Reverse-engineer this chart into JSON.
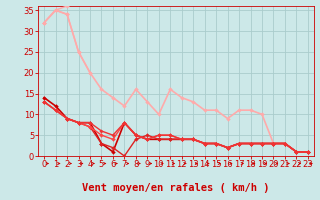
{
  "xlabel": "Vent moyen/en rafales ( km/h )",
  "xlim": [
    -0.5,
    23.5
  ],
  "ylim": [
    0,
    36
  ],
  "yticks": [
    0,
    5,
    10,
    15,
    20,
    25,
    30,
    35
  ],
  "xticks": [
    0,
    1,
    2,
    3,
    4,
    5,
    6,
    7,
    8,
    9,
    10,
    11,
    12,
    13,
    14,
    15,
    16,
    17,
    18,
    19,
    20,
    21,
    22,
    23
  ],
  "bg_color": "#cce8e8",
  "grid_color": "#aacccc",
  "lines": [
    {
      "x": [
        0,
        1,
        2,
        3,
        4,
        5,
        6,
        7,
        8,
        9,
        10,
        11,
        12,
        13,
        14,
        15,
        16,
        17,
        18,
        19,
        20,
        21,
        22,
        23
      ],
      "y": [
        32,
        35,
        36,
        null,
        null,
        null,
        null,
        null,
        null,
        null,
        null,
        null,
        null,
        null,
        null,
        null,
        null,
        null,
        null,
        null,
        null,
        null,
        null,
        null
      ],
      "color": "#ffaaaa",
      "lw": 1.0,
      "marker": "D",
      "ms": 2.0
    },
    {
      "x": [
        0,
        1,
        2,
        3,
        4,
        5,
        6,
        7,
        8,
        9,
        10,
        11,
        12,
        13,
        14,
        15,
        16,
        17,
        18,
        19,
        20,
        21,
        22,
        23
      ],
      "y": [
        32,
        35,
        34,
        25,
        20,
        null,
        null,
        null,
        null,
        null,
        null,
        null,
        null,
        null,
        null,
        null,
        null,
        null,
        null,
        null,
        null,
        null,
        null,
        null
      ],
      "color": "#ffaaaa",
      "lw": 1.0,
      "marker": "D",
      "ms": 2.0
    },
    {
      "x": [
        0,
        1,
        2,
        3,
        4,
        5,
        6,
        7,
        8,
        9,
        10,
        11,
        12,
        13,
        14,
        15,
        16,
        17,
        18,
        19,
        20,
        21,
        22,
        23
      ],
      "y": [
        32,
        35,
        34,
        25,
        20,
        16,
        14,
        12,
        16,
        13,
        10,
        16,
        14,
        13,
        11,
        11,
        9,
        11,
        11,
        10,
        3,
        3,
        1,
        1
      ],
      "color": "#ffaaaa",
      "lw": 1.2,
      "marker": "D",
      "ms": 2.0
    },
    {
      "x": [
        0,
        1,
        2,
        3,
        4,
        5,
        6,
        7,
        8,
        9,
        10,
        11,
        12,
        13,
        14,
        15,
        16,
        17,
        18,
        19,
        20,
        21,
        22,
        23
      ],
      "y": [
        14,
        12,
        9,
        8,
        8,
        3,
        1,
        8,
        5,
        4,
        4,
        4,
        4,
        4,
        3,
        3,
        2,
        3,
        3,
        3,
        3,
        3,
        1,
        1
      ],
      "color": "#cc0000",
      "lw": 1.2,
      "marker": "D",
      "ms": 2.0
    },
    {
      "x": [
        0,
        1,
        2,
        3,
        4,
        5,
        6,
        7,
        8,
        9,
        10,
        11,
        12,
        13,
        14,
        15,
        16,
        17,
        18,
        19,
        20,
        21,
        22,
        23
      ],
      "y": [
        13,
        11,
        9,
        8,
        7,
        3,
        2,
        0,
        4,
        5,
        4,
        4,
        4,
        4,
        3,
        3,
        2,
        3,
        3,
        3,
        3,
        3,
        1,
        1
      ],
      "color": "#dd2222",
      "lw": 1.0,
      "marker": "D",
      "ms": 2.0
    },
    {
      "x": [
        0,
        1,
        2,
        3,
        4,
        5,
        6,
        7,
        8,
        9,
        10,
        11,
        12,
        13,
        14,
        15,
        16,
        17,
        18,
        19,
        20,
        21,
        22,
        23
      ],
      "y": [
        13,
        11,
        9,
        8,
        7,
        5,
        4,
        8,
        5,
        4,
        5,
        5,
        4,
        4,
        3,
        3,
        2,
        3,
        3,
        3,
        3,
        3,
        1,
        1
      ],
      "color": "#ff4444",
      "lw": 1.0,
      "marker": "D",
      "ms": 2.0
    },
    {
      "x": [
        0,
        1,
        2,
        3,
        4,
        5,
        6,
        7,
        8,
        9,
        10,
        11,
        12,
        13,
        14,
        15,
        16,
        17,
        18,
        19,
        20,
        21,
        22,
        23
      ],
      "y": [
        13,
        11,
        9,
        8,
        8,
        6,
        5,
        8,
        5,
        4,
        5,
        5,
        4,
        4,
        3,
        3,
        2,
        3,
        3,
        3,
        3,
        3,
        1,
        1
      ],
      "color": "#ee3333",
      "lw": 1.0,
      "marker": "D",
      "ms": 1.8
    }
  ],
  "xlabel_color": "#cc0000",
  "xlabel_fontsize": 7.5,
  "tick_fontsize": 6,
  "tick_color": "#cc0000",
  "arrow_color": "#cc0000"
}
